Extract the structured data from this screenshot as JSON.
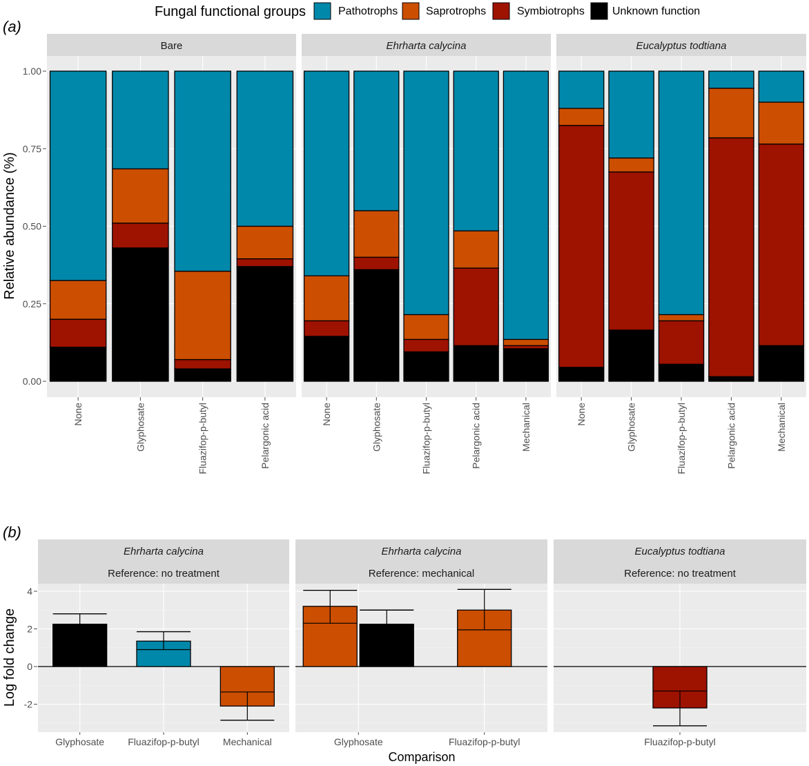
{
  "legend": {
    "title": "Fungal functional groups",
    "items": [
      {
        "label": "Pathotrophs",
        "color": "#0088aa"
      },
      {
        "label": "Saprotrophs",
        "color": "#cc4e00"
      },
      {
        "label": "Symbiotrophs",
        "color": "#9e1200"
      },
      {
        "label": "Unknown function",
        "color": "#000000"
      }
    ]
  },
  "panel_a_label": "(a)",
  "panel_b_label": "(b)",
  "chart_data": [
    {
      "type": "bar",
      "stacked": true,
      "ylabel": "Relative abundance (%)",
      "ylim": [
        0,
        1
      ],
      "yticks": [
        "0.00",
        "0.25",
        "0.50",
        "0.75",
        "1.00"
      ],
      "series_order": [
        "Unknown function",
        "Symbiotrophs",
        "Saprotrophs",
        "Pathotrophs"
      ],
      "facets": [
        {
          "title": "Bare",
          "italic": false,
          "categories": [
            "None",
            "Glyphosate",
            "Fluazifop-p-butyl",
            "Pelargonic acid"
          ],
          "values": [
            [
              0.11,
              0.09,
              0.125,
              0.675
            ],
            [
              0.43,
              0.08,
              0.175,
              0.315
            ],
            [
              0.04,
              0.03,
              0.285,
              0.645
            ],
            [
              0.37,
              0.025,
              0.105,
              0.5
            ]
          ]
        },
        {
          "title": "Ehrharta calycina",
          "italic": true,
          "categories": [
            "None",
            "Glyphosate",
            "Fluazifop-p-butyl",
            "Pelargonic acid",
            "Mechanical"
          ],
          "values": [
            [
              0.145,
              0.05,
              0.145,
              0.66
            ],
            [
              0.36,
              0.04,
              0.15,
              0.45
            ],
            [
              0.095,
              0.04,
              0.08,
              0.785
            ],
            [
              0.115,
              0.25,
              0.12,
              0.515
            ],
            [
              0.105,
              0.01,
              0.02,
              0.865
            ]
          ]
        },
        {
          "title": "Eucalyptus todtiana",
          "italic": true,
          "categories": [
            "None",
            "Glyphosate",
            "Fluazifop-p-butyl",
            "Pelargonic acid",
            "Mechanical"
          ],
          "values": [
            [
              0.045,
              0.78,
              0.055,
              0.12
            ],
            [
              0.165,
              0.51,
              0.045,
              0.28
            ],
            [
              0.055,
              0.14,
              0.02,
              0.785
            ],
            [
              0.015,
              0.77,
              0.16,
              0.055
            ],
            [
              0.115,
              0.65,
              0.135,
              0.1
            ]
          ]
        }
      ]
    },
    {
      "type": "bar",
      "title": "",
      "xlabel": "Comparison",
      "ylabel": "Log fold change",
      "ylim": [
        -3.6,
        4.3
      ],
      "yticks": [
        "-2",
        "0",
        "2",
        "4"
      ],
      "facets": [
        {
          "title": "Ehrharta calycina",
          "subtitle": "Reference: no treatment",
          "categories": [
            "Glyphosate",
            "Fluazifop-p-butyl",
            "Mechanical"
          ],
          "bars": [
            {
              "cat": 0,
              "value": 2.25,
              "mid": 2.25,
              "err_hi": 2.8,
              "err_lo": 2.25,
              "group": "Unknown function"
            },
            {
              "cat": 1,
              "value": 1.35,
              "mid": 0.9,
              "err_hi": 1.85,
              "err_lo": 0.9,
              "group": "Pathotrophs"
            },
            {
              "cat": 2,
              "value": -2.1,
              "mid": -1.35,
              "err_hi": -1.35,
              "err_lo": -2.85,
              "group": "Saprotrophs"
            }
          ]
        },
        {
          "title": "Ehrharta calycina",
          "subtitle": "Reference: mechanical",
          "categories": [
            "Glyphosate",
            "Fluazifop-p-butyl"
          ],
          "bars": [
            {
              "cat": 0,
              "value": 3.2,
              "mid": 2.3,
              "err_hi": 4.05,
              "err_lo": 2.3,
              "group": "Saprotrophs"
            },
            {
              "cat": 0,
              "value": 2.25,
              "mid": 2.25,
              "err_hi": 3.0,
              "err_lo": 2.25,
              "group": "Unknown function"
            },
            {
              "cat": 1,
              "value": 3.0,
              "mid": 1.95,
              "err_hi": 4.1,
              "err_lo": 1.95,
              "group": "Saprotrophs"
            }
          ]
        },
        {
          "title": "Eucalyptus todtiana",
          "subtitle": "Reference: no treatment",
          "categories": [
            "Fluazifop-p-butyl"
          ],
          "bars": [
            {
              "cat": 0,
              "value": -2.2,
              "mid": -1.3,
              "err_hi": -1.3,
              "err_lo": -3.15,
              "group": "Symbiotrophs"
            }
          ]
        }
      ]
    }
  ]
}
